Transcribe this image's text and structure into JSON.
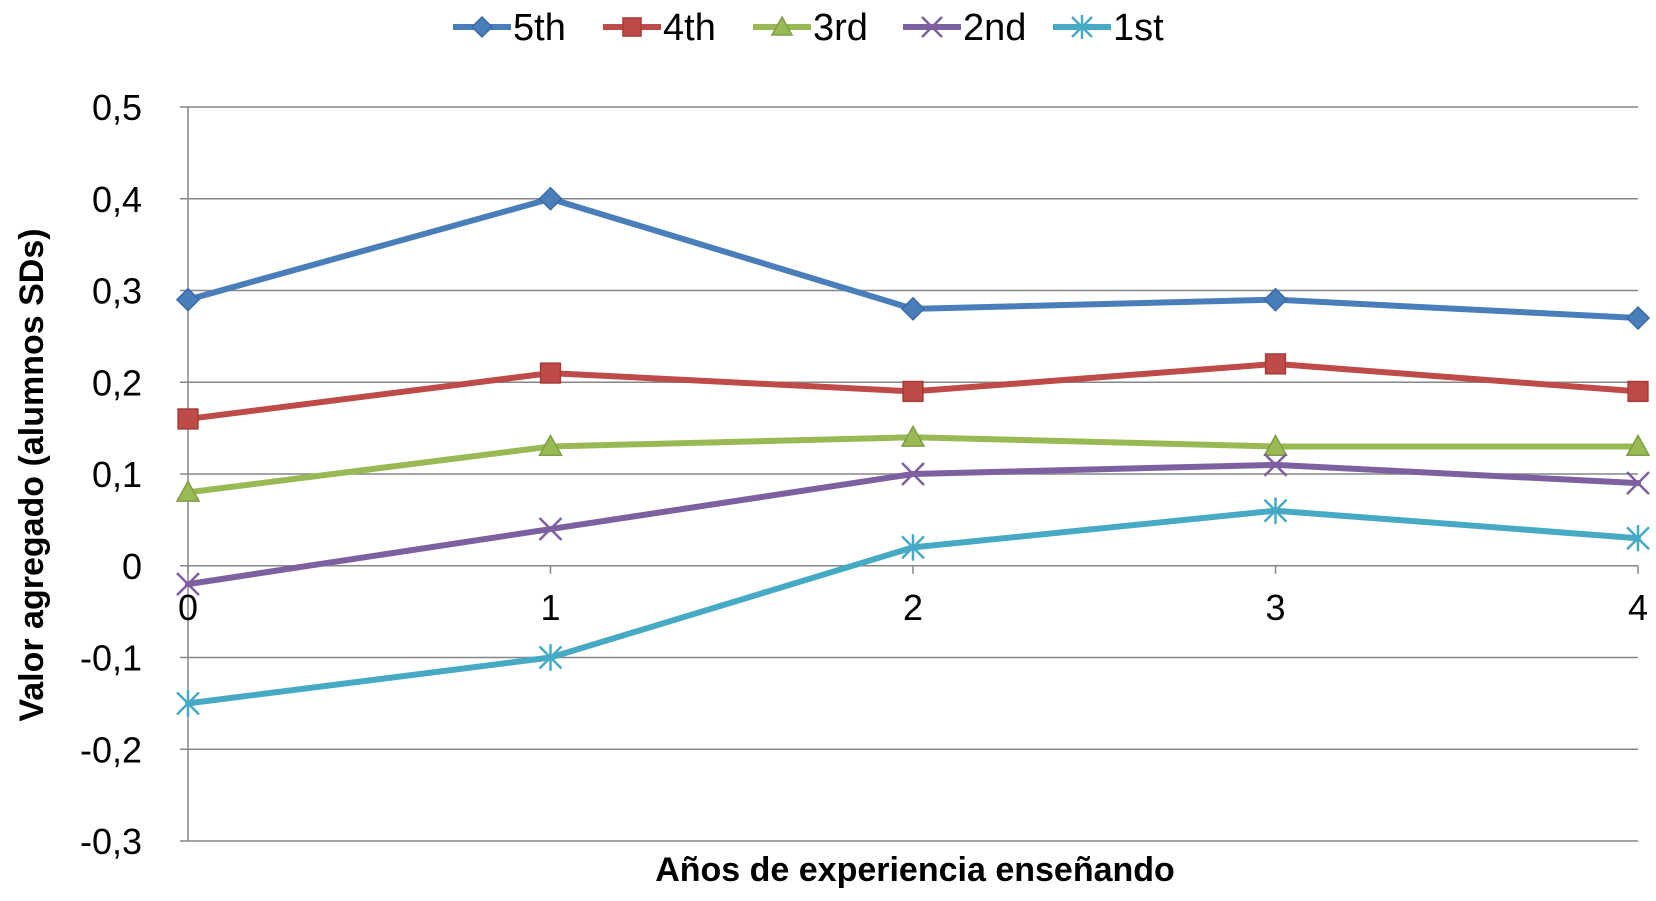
{
  "chart_data": {
    "type": "line",
    "title": "",
    "xlabel": "Años de experiencia enseñando",
    "ylabel": "Valor agregado (alumnos SDs)",
    "x": [
      0,
      1,
      2,
      3,
      4
    ],
    "x_tick_labels": [
      "0",
      "1",
      "2",
      "3",
      "4"
    ],
    "y_tick_labels": [
      "0,5",
      "0,4",
      "0,3",
      "0,2",
      "0,1",
      "0",
      "-0,1",
      "-0,2",
      "-0,3"
    ],
    "y_ticks": [
      0.5,
      0.4,
      0.3,
      0.2,
      0.1,
      0,
      -0.1,
      -0.2,
      -0.3
    ],
    "xlim": [
      0,
      4
    ],
    "ylim": [
      -0.3,
      0.5
    ],
    "grid": "horizontal",
    "legend_position": "top",
    "series": [
      {
        "name": "5th",
        "values": [
          0.29,
          0.4,
          0.28,
          0.29,
          0.27
        ],
        "color": "#4a7ebb",
        "marker": "diamond"
      },
      {
        "name": "4th",
        "values": [
          0.16,
          0.21,
          0.19,
          0.22,
          0.19
        ],
        "color": "#be4b48",
        "marker": "square"
      },
      {
        "name": "3rd",
        "values": [
          0.08,
          0.13,
          0.14,
          0.13,
          0.13
        ],
        "color": "#98b954",
        "marker": "triangle"
      },
      {
        "name": "2nd",
        "values": [
          -0.02,
          0.04,
          0.1,
          0.11,
          0.09
        ],
        "color": "#7d60a0",
        "marker": "x"
      },
      {
        "name": "1st",
        "values": [
          -0.15,
          -0.1,
          0.02,
          0.06,
          0.03
        ],
        "color": "#46aac5",
        "marker": "star"
      }
    ]
  }
}
